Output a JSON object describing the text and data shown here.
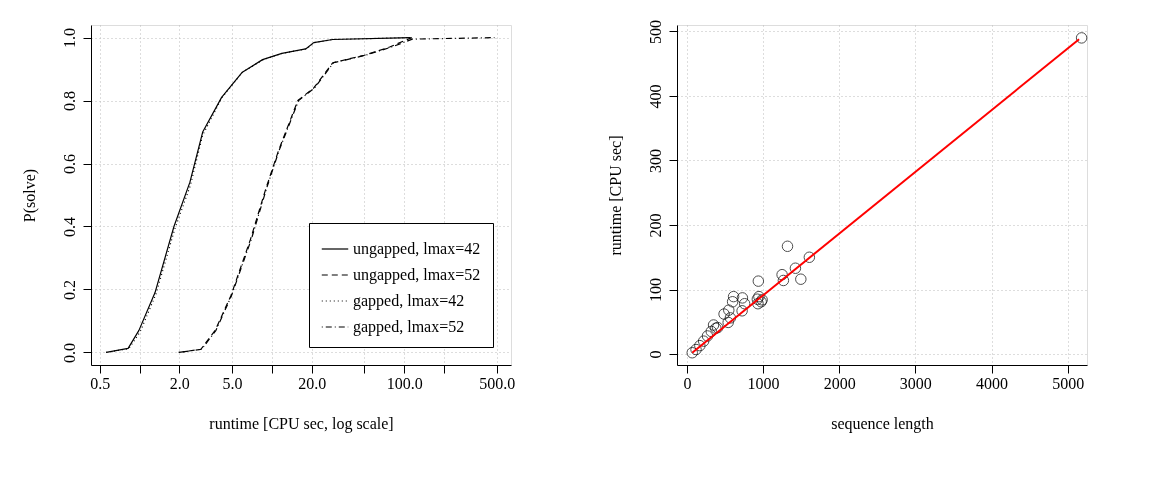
{
  "chart_data": [
    {
      "type": "line",
      "xlabel": "runtime [CPU sec, log scale]",
      "ylabel": "P(solve)",
      "log": "x",
      "xlim": [
        0.43,
        640
      ],
      "ylim": [
        -0.04,
        1.04
      ],
      "xticks": [
        0.5,
        {
          "value": 1,
          "label": null
        },
        {
          "value": 2,
          "label": "2.0"
        },
        {
          "value": 5,
          "label": "5.0"
        },
        {
          "value": 10,
          "label": null
        },
        {
          "value": 20,
          "label": "20.0"
        },
        {
          "value": 50,
          "label": null
        },
        {
          "value": 100,
          "label": "100.0"
        },
        {
          "value": 200,
          "label": null
        },
        {
          "value": 500,
          "label": "500.0"
        }
      ],
      "yticks": [
        {
          "value": 0,
          "label": "0.0"
        },
        {
          "value": 0.2,
          "label": "0.2"
        },
        {
          "value": 0.4,
          "label": "0.4"
        },
        {
          "value": 0.6,
          "label": "0.6"
        },
        {
          "value": 0.8,
          "label": "0.8"
        },
        {
          "value": 1,
          "label": "1.0"
        }
      ],
      "grid": true,
      "legend": "bottom right",
      "marker": "none",
      "series": [
        {
          "name": "ungapped, lmax=42",
          "color": "#000000",
          "line_style": "solid",
          "x": [
            0.56,
            0.82,
            0.99,
            1.31,
            1.82,
            2.4,
            3.0,
            4.17,
            5.98,
            8.5,
            11.9,
            18.0,
            20.7,
            28.8,
            111
          ],
          "values": [
            0,
            0.013,
            0.07,
            0.19,
            0.4,
            0.54,
            0.7,
            0.81,
            0.89,
            0.93,
            0.95,
            0.964,
            0.984,
            0.994,
            1.0
          ]
        },
        {
          "name": "ungapped, lmax=52",
          "color": "#000000",
          "line_style": "dashed",
          "x": [
            1.98,
            2.91,
            3.73,
            4.9,
            6.9,
            9.0,
            11.2,
            15.7,
            20.7,
            28.8,
            50,
            77.5,
            114
          ],
          "values": [
            0,
            0.01,
            0.07,
            0.18,
            0.36,
            0.52,
            0.64,
            0.8,
            0.84,
            0.92,
            0.944,
            0.97,
            1.0
          ]
        },
        {
          "name": "gapped, lmax=42",
          "color": "#000000",
          "line_style": "dotted",
          "x": [
            0.56,
            0.83,
            1.01,
            1.33,
            1.84,
            2.42,
            3.0,
            4.2,
            6.0,
            8.6,
            12.0,
            18.2,
            20.9,
            29.0,
            112
          ],
          "values": [
            0,
            0.012,
            0.065,
            0.185,
            0.39,
            0.53,
            0.69,
            0.81,
            0.89,
            0.93,
            0.95,
            0.964,
            0.984,
            0.994,
            1.0
          ]
        },
        {
          "name": "gapped, lmax=52",
          "color": "#000000",
          "line_style": "dashdot",
          "x": [
            1.98,
            2.95,
            3.78,
            4.95,
            7.0,
            9.1,
            11.3,
            15.9,
            21.0,
            29.2,
            51,
            80,
            115,
            480
          ],
          "values": [
            0,
            0.01,
            0.07,
            0.18,
            0.36,
            0.52,
            0.64,
            0.8,
            0.84,
            0.92,
            0.944,
            0.97,
            0.995,
            1.0
          ]
        }
      ]
    },
    {
      "type": "scatter",
      "xlabel": "sequence length",
      "ylabel": "runtime [CPU sec]",
      "xlim": [
        -130,
        5254
      ],
      "ylim": [
        -17,
        510
      ],
      "xticks": [
        0,
        1000,
        2000,
        3000,
        4000,
        5000
      ],
      "yticks": [
        0,
        100,
        200,
        300,
        400,
        500
      ],
      "grid": true,
      "legend": false,
      "marker": "circle",
      "series": [
        {
          "color": "#000000",
          "x": [
            5183,
            1321,
            1608,
            1425,
            1250,
            1267,
            1496,
            938,
            613,
            729,
            758,
            725,
            600,
            488,
            550,
            571,
            542,
            925,
            946,
            988,
            933,
            975,
            350,
            404,
            70,
            120,
            170,
            220,
            270,
            320,
            380
          ],
          "values": [
            490,
            167,
            150,
            133,
            123,
            114,
            116,
            113,
            89,
            87,
            78,
            67,
            81,
            62,
            68,
            56,
            49,
            85,
            89,
            84,
            78,
            81,
            45,
            41,
            2,
            7,
            13,
            20,
            28,
            35,
            40
          ]
        },
        {
          "type": "line",
          "color": "#ff0000",
          "marker": "none",
          "x": [
            70,
            5150
          ],
          "values": [
            2,
            488
          ]
        }
      ]
    }
  ]
}
